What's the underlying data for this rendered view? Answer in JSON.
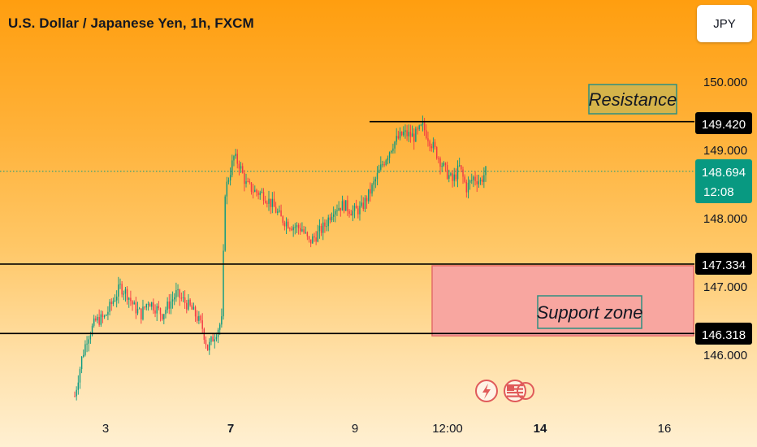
{
  "header": {
    "title": "U.S. Dollar / Japanese Yen, 1h, FXCM",
    "currency_button": "JPY"
  },
  "colors": {
    "up": "#089981",
    "down": "#f23645",
    "price_line": "#089981",
    "support_fill": "#f8a6a0",
    "resistance_fill": "#d6b44a",
    "label_bg": "#000000"
  },
  "price_tags": {
    "resistance": "149.420",
    "current_price": "148.694",
    "countdown": "12:08",
    "support_top": "147.334",
    "support_bottom": "146.318"
  },
  "annotations": {
    "resistance": "Resistance",
    "support": "Support zone"
  },
  "icons": [
    "flash-icon",
    "us-flag-icon"
  ],
  "chart_data": {
    "type": "candlestick",
    "symbol": "USDJPY",
    "timeframe": "1h",
    "ylim": [
      145.25,
      151.0
    ],
    "yticks": [
      {
        "value": 150.0,
        "label": "150.000"
      },
      {
        "value": 149.0,
        "label": "149.000"
      },
      {
        "value": 148.0,
        "label": "148.000"
      },
      {
        "value": 147.0,
        "label": "147.000"
      },
      {
        "value": 146.0,
        "label": "146.000"
      }
    ],
    "xticks": [
      {
        "label": "3",
        "bold": false
      },
      {
        "label": "7",
        "bold": true
      },
      {
        "label": "9",
        "bold": false
      },
      {
        "label": "12:00",
        "bold": false
      },
      {
        "label": "14",
        "bold": true
      },
      {
        "label": "16",
        "bold": false
      }
    ],
    "levels": {
      "resistance": 149.42,
      "support_top": 147.334,
      "support_bottom": 146.318,
      "current": 148.694
    },
    "path": [
      [
        0,
        145.4
      ],
      [
        4,
        145.95
      ],
      [
        7,
        146.25
      ],
      [
        12,
        146.5
      ],
      [
        17,
        146.55
      ],
      [
        22,
        146.8
      ],
      [
        26,
        147.0
      ],
      [
        30,
        146.9
      ],
      [
        34,
        146.7
      ],
      [
        38,
        146.6
      ],
      [
        42,
        146.8
      ],
      [
        46,
        146.7
      ],
      [
        50,
        146.6
      ],
      [
        54,
        146.75
      ],
      [
        58,
        146.9
      ],
      [
        62,
        146.8
      ],
      [
        66,
        146.7
      ],
      [
        70,
        146.55
      ],
      [
        73,
        146.4
      ],
      [
        76,
        146.1
      ],
      [
        79,
        146.25
      ],
      [
        82,
        146.4
      ],
      [
        84,
        146.5
      ],
      [
        86,
        148.4
      ],
      [
        88,
        148.6
      ],
      [
        91,
        148.9
      ],
      [
        94,
        148.8
      ],
      [
        98,
        148.5
      ],
      [
        103,
        148.4
      ],
      [
        108,
        148.35
      ],
      [
        113,
        148.2
      ],
      [
        118,
        148.0
      ],
      [
        124,
        147.9
      ],
      [
        130,
        147.85
      ],
      [
        134,
        147.65
      ],
      [
        138,
        147.75
      ],
      [
        143,
        147.9
      ],
      [
        148,
        148.15
      ],
      [
        154,
        148.2
      ],
      [
        159,
        148.1
      ],
      [
        164,
        148.15
      ],
      [
        170,
        148.45
      ],
      [
        176,
        148.8
      ],
      [
        182,
        149.1
      ],
      [
        188,
        149.25
      ],
      [
        194,
        149.2
      ],
      [
        199,
        149.35
      ],
      [
        203,
        149.15
      ],
      [
        208,
        148.9
      ],
      [
        212,
        148.7
      ],
      [
        216,
        148.55
      ],
      [
        220,
        148.75
      ],
      [
        224,
        148.45
      ],
      [
        228,
        148.6
      ],
      [
        232,
        148.55
      ],
      [
        235,
        148.69
      ]
    ],
    "candle_count": 236
  }
}
